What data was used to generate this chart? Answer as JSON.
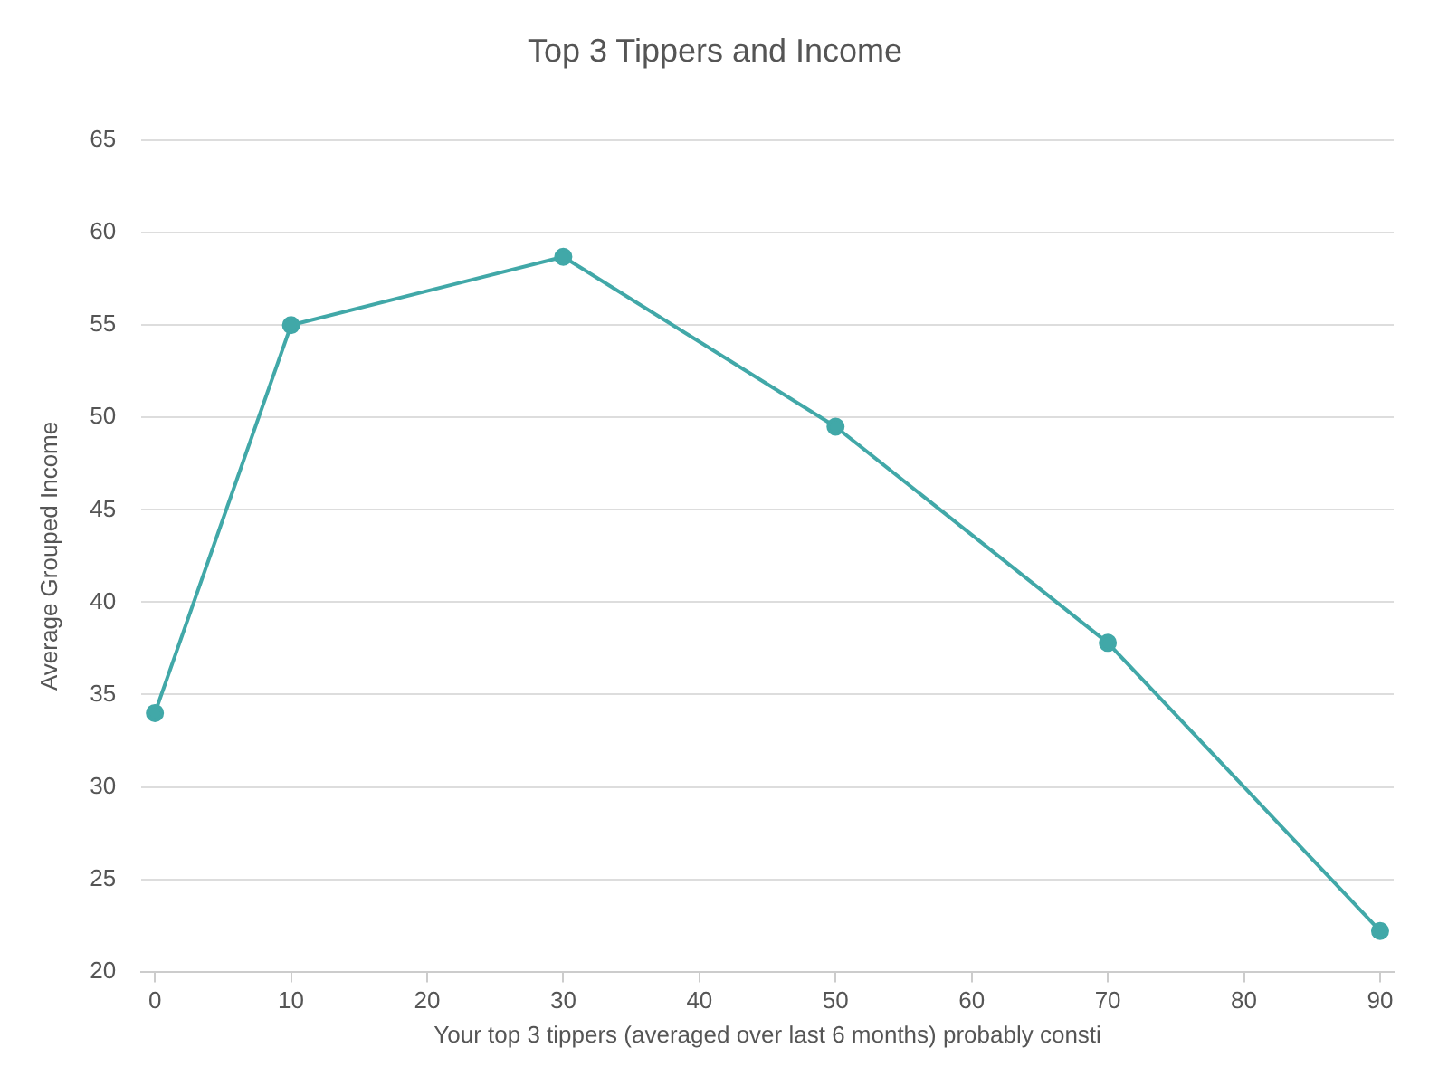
{
  "chart_data": {
    "type": "line",
    "title": "Top 3 Tippers and Income",
    "xlabel": "Your top 3 tippers (averaged over last 6 months) probably consti",
    "ylabel": "Average Grouped Income",
    "x": [
      0,
      10,
      30,
      50,
      70,
      90
    ],
    "series": [
      {
        "color": "#41a8a8",
        "values": [
          34.0,
          55.0,
          58.7,
          49.5,
          37.8,
          22.2
        ]
      }
    ],
    "xlim": [
      -1,
      91
    ],
    "xticks": [
      0,
      10,
      20,
      30,
      40,
      50,
      60,
      70,
      80,
      90
    ],
    "ylim": [
      20,
      65
    ],
    "yticks": [
      20,
      25,
      30,
      35,
      40,
      45,
      50,
      55,
      60,
      65
    ],
    "grid": "y",
    "legend": false,
    "marker": "circle",
    "line_style": "solid"
  }
}
